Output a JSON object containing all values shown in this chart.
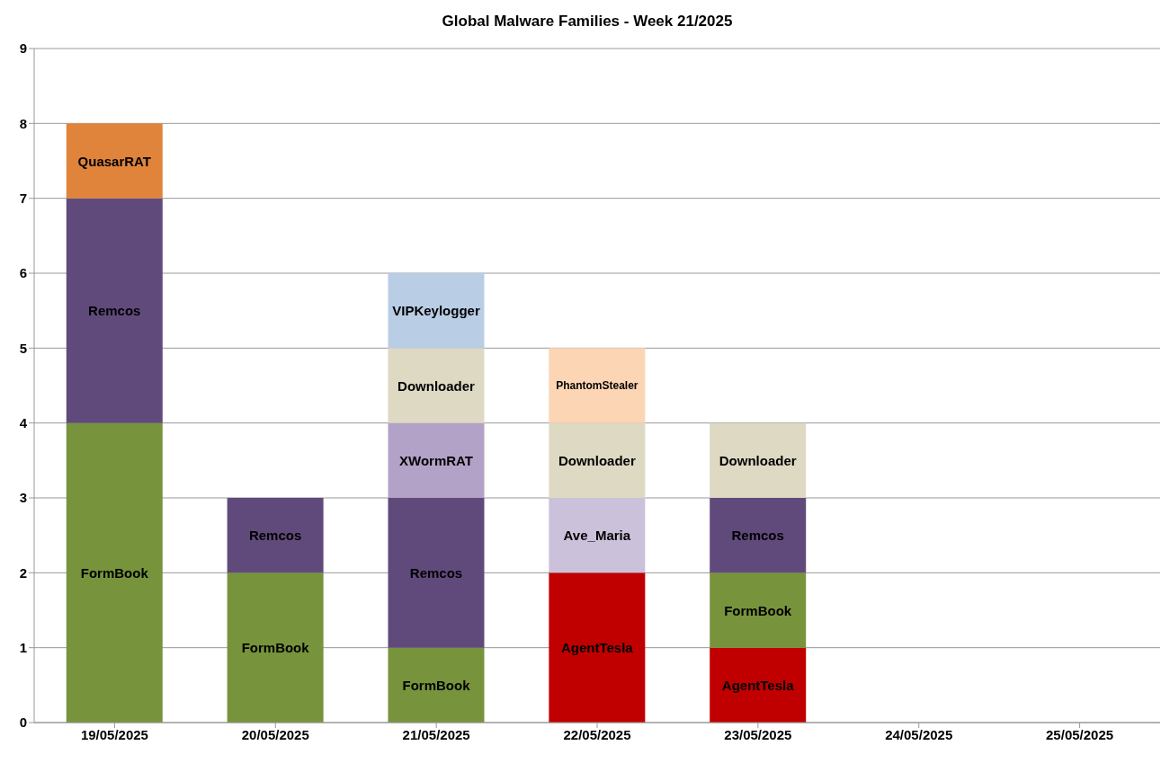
{
  "chart_data": {
    "type": "bar",
    "title": "Global Malware Families - Week 21/2025",
    "stacked": true,
    "grid": "y",
    "legend": false,
    "categories": [
      "19/05/2025",
      "20/05/2025",
      "21/05/2025",
      "22/05/2025",
      "23/05/2025",
      "24/05/2025",
      "25/05/2025"
    ],
    "ylim": [
      0,
      9
    ],
    "yticks": [
      0,
      1,
      2,
      3,
      4,
      5,
      6,
      7,
      8,
      9
    ],
    "series": [
      {
        "name": "AgentTesla",
        "color": "#c00000",
        "values": [
          null,
          null,
          null,
          2,
          1,
          null,
          null
        ]
      },
      {
        "name": "FormBook",
        "color": "#77933c",
        "values": [
          4,
          2,
          1,
          null,
          1,
          null,
          null
        ]
      },
      {
        "name": "Remcos",
        "color": "#604a7b",
        "values": [
          3,
          1,
          2,
          null,
          1,
          null,
          null
        ]
      },
      {
        "name": "XWormRAT",
        "color": "#b3a2c7",
        "values": [
          null,
          null,
          1,
          null,
          null,
          null,
          null
        ]
      },
      {
        "name": "Ave_Maria",
        "color": "#ccc1da",
        "values": [
          null,
          null,
          null,
          1,
          null,
          null,
          null
        ]
      },
      {
        "name": "QuasarRAT",
        "color": "#e0843c",
        "values": [
          1,
          null,
          null,
          null,
          null,
          null,
          null
        ]
      },
      {
        "name": "Downloader",
        "color": "#ddd9c3",
        "values": [
          null,
          null,
          1,
          1,
          1,
          null,
          null
        ]
      },
      {
        "name": "PhantomStealer",
        "color": "#fcd5b5",
        "values": [
          null,
          null,
          null,
          1,
          null,
          null,
          null
        ]
      },
      {
        "name": "VIPKeylogger",
        "color": "#b9cde5",
        "values": [
          null,
          null,
          1,
          null,
          null,
          null,
          null
        ]
      }
    ]
  }
}
